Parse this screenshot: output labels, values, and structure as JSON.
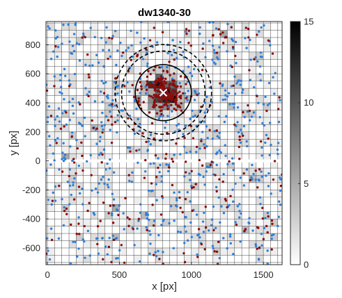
{
  "chart_data": {
    "type": "scatter",
    "title": "dw1340-30",
    "xlabel": "x [px]",
    "ylabel": "y [px]",
    "xlim": [
      -10,
      1630
    ],
    "ylim": [
      -715,
      960
    ],
    "x_ticks": [
      0,
      500,
      1000,
      1500
    ],
    "x_tick_labels": [
      "0",
      "500",
      "1000",
      "1500"
    ],
    "y_ticks": [
      -600,
      -400,
      -200,
      0,
      200,
      400,
      600,
      800
    ],
    "y_tick_labels": [
      "-600",
      "-400",
      "-200",
      "0",
      "200",
      "400",
      "600",
      "800"
    ],
    "grid": "on",
    "grid_cell_size": 50,
    "chip_gap_y": [
      -10,
      10
    ],
    "colorbar": {
      "range": [
        0,
        15
      ],
      "ticks": [
        0,
        5,
        10,
        15
      ],
      "tick_labels": [
        "0",
        "5",
        "10",
        "15"
      ],
      "colormap": "gray (white to black)"
    },
    "series": [
      {
        "color": "#2f7fd8",
        "count": 650,
        "distribution": "uniform over field"
      },
      {
        "color": "#8b0d0d",
        "count_background": 260,
        "count_cluster": 200,
        "distribution": "uniform background plus cluster at center"
      }
    ],
    "center_marker": {
      "x": 805,
      "y": 470,
      "shape": "x",
      "color": "#ffffff"
    },
    "circles": [
      {
        "cx": 805,
        "cy": 470,
        "r": 195,
        "style": "solid"
      },
      {
        "cx": 805,
        "cy": 470,
        "r": 290,
        "style": "dashed"
      },
      {
        "cx": 805,
        "cy": 470,
        "r": 335,
        "style": "dashed"
      }
    ]
  }
}
